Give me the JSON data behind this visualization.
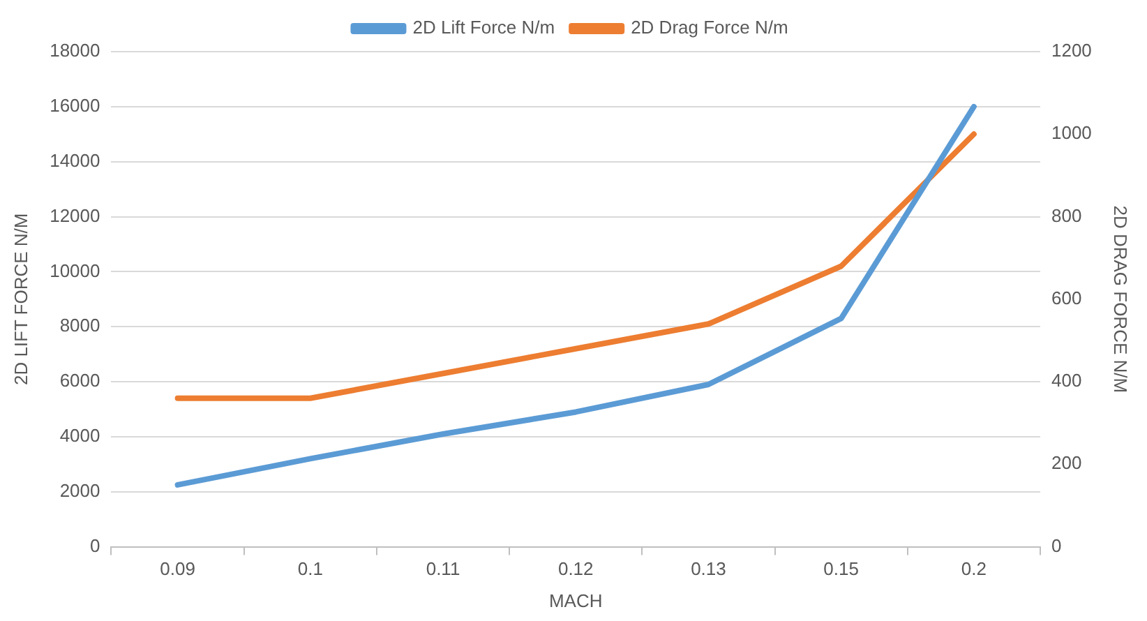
{
  "chart_data": {
    "type": "line",
    "xlabel": "MACH",
    "ylabel": "2D LIFT FORCE N/M",
    "y2label": "2D DRAG FORCE N/M",
    "categories": [
      "0.09",
      "0.1",
      "0.11",
      "0.12",
      "0.13",
      "0.15",
      "0.2"
    ],
    "series": [
      {
        "name": "2D Lift Force N/m",
        "color": "#5b9bd5",
        "values": [
          2250,
          3200,
          4100,
          4900,
          5900,
          8300,
          16000
        ]
      },
      {
        "name": "2D Drag Force N/m",
        "color": "#ed7d31",
        "axis": "y2",
        "values": [
          360,
          360,
          420,
          480,
          540,
          680,
          1000
        ]
      }
    ],
    "ylim": [
      0,
      18000
    ],
    "yticks": [
      0,
      2000,
      4000,
      6000,
      8000,
      10000,
      12000,
      14000,
      16000,
      18000
    ],
    "y2lim": [
      0,
      1200
    ],
    "y2ticks": [
      0,
      200,
      400,
      600,
      800,
      1000,
      1200
    ],
    "grid": "y",
    "legend": "top",
    "marker": "none",
    "line_style": "solid"
  }
}
